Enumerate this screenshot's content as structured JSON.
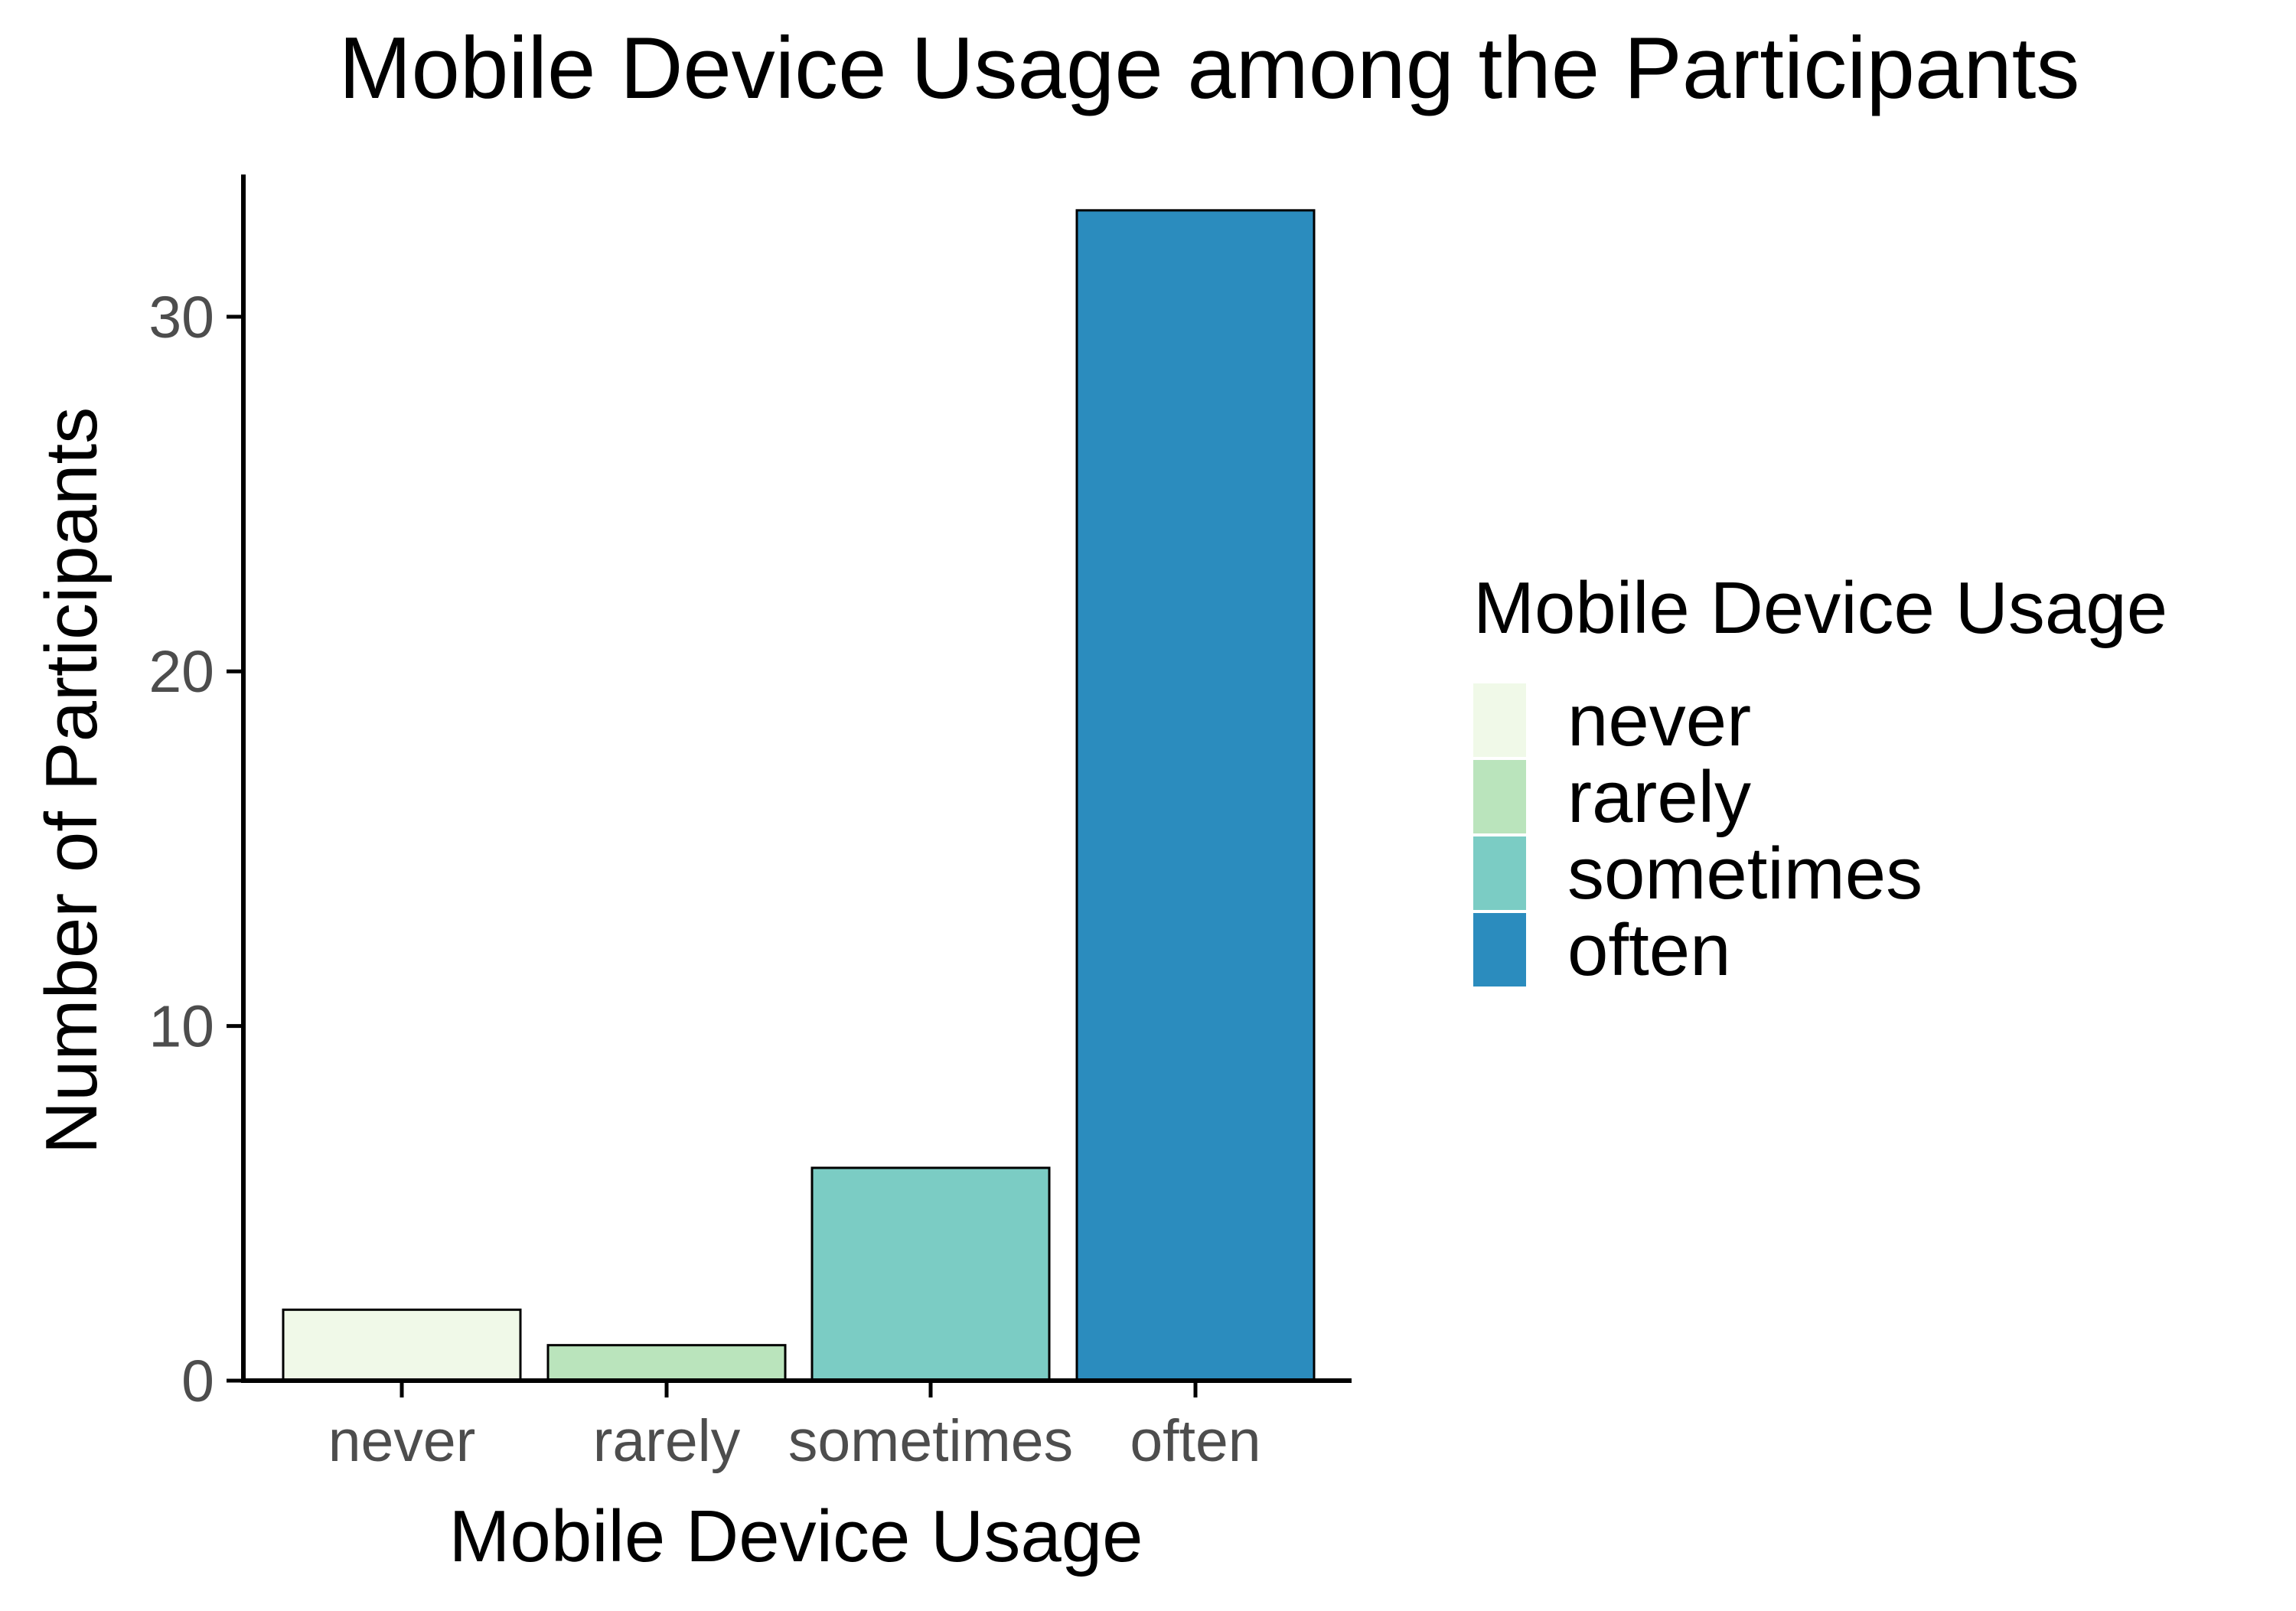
{
  "chart_data": {
    "type": "bar",
    "title": "Mobile Device Usage among the Participants",
    "xlabel": "Mobile Device Usage",
    "ylabel": "Number of Participants",
    "categories": [
      "never",
      "rarely",
      "sometimes",
      "often"
    ],
    "values": [
      2,
      1,
      6,
      33
    ],
    "colors": [
      "#F0F9E8",
      "#BAE4BC",
      "#7BCCC4",
      "#2B8CBE"
    ],
    "ylim": [
      0,
      34
    ],
    "yticks": [
      0,
      10,
      20,
      30
    ],
    "grid": false,
    "legend": {
      "title": "Mobile Device Usage",
      "placement": "right",
      "entries": [
        "never",
        "rarely",
        "sometimes",
        "often"
      ]
    }
  }
}
